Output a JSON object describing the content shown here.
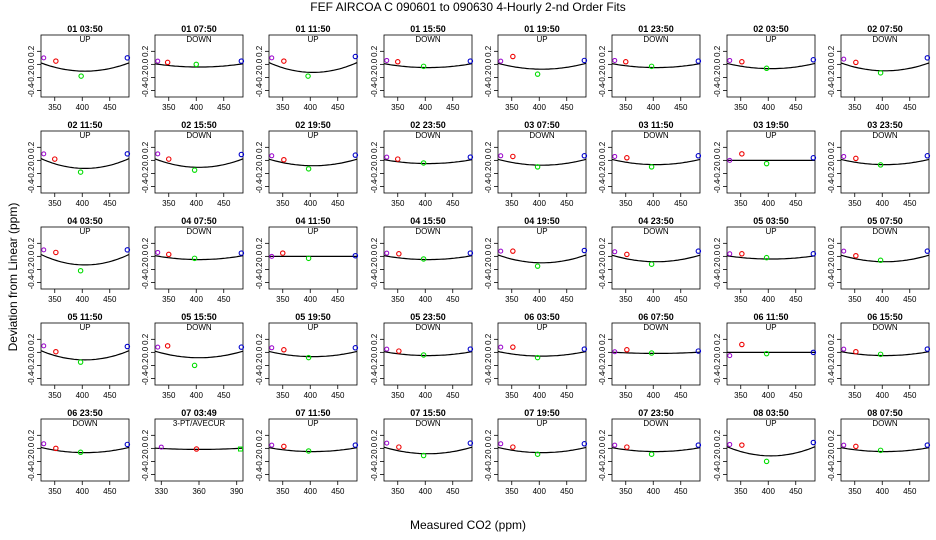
{
  "figure": {
    "title": "FEF   AIRCOA C   090601 to 090630   4-Hourly 2-nd Order Fits",
    "xlabel": "Measured CO2 (ppm)",
    "ylabel": "Deviation from Linear (ppm)"
  },
  "colors": {
    "curve": "#000000",
    "low_std": "#9900cc",
    "std2": "#ee0000",
    "std3": "#00dd00",
    "high_std": "#0000cc"
  },
  "chart_data": {
    "type": "scatter",
    "description_units": "x: Measured CO2 (ppm); y: Deviation from Linear (ppm)",
    "ylim": [
      -0.5,
      0.45
    ],
    "yticks": [
      -0.4,
      -0.2,
      0.0,
      0.2
    ],
    "ytick_labels": [
      "-0.4",
      "-0.2",
      "0.0",
      "0.2"
    ],
    "xlim": [
      325,
      485
    ],
    "xticks": [
      350,
      400,
      450
    ],
    "xtick_labels": [
      "350",
      "400",
      "450"
    ],
    "panels": [
      {
        "title": "01 03:50",
        "label": "UP",
        "a": 0.127,
        "points": [
          [
            330,
            0.1
          ],
          [
            352,
            0.05
          ],
          [
            398,
            -0.18
          ],
          [
            482,
            0.1
          ]
        ]
      },
      {
        "title": "01 07:50",
        "label": "DOWN",
        "a": 0.05,
        "points": [
          [
            330,
            0.05
          ],
          [
            348,
            0.03
          ],
          [
            400,
            0.0
          ],
          [
            482,
            0.05
          ]
        ]
      },
      {
        "title": "01 11:50",
        "label": "UP",
        "a": 0.15,
        "points": [
          [
            330,
            0.1
          ],
          [
            352,
            0.05
          ],
          [
            396,
            -0.18
          ],
          [
            482,
            0.12
          ]
        ]
      },
      {
        "title": "01 15:50",
        "label": "DOWN",
        "a": 0.06,
        "points": [
          [
            330,
            0.06
          ],
          [
            350,
            0.04
          ],
          [
            397,
            -0.03
          ],
          [
            482,
            0.05
          ]
        ]
      },
      {
        "title": "01 19:50",
        "label": "UP",
        "a": 0.09,
        "points": [
          [
            330,
            0.05
          ],
          [
            352,
            0.12
          ],
          [
            397,
            -0.15
          ],
          [
            482,
            0.06
          ]
        ]
      },
      {
        "title": "01 23:50",
        "label": "DOWN",
        "a": 0.06,
        "points": [
          [
            330,
            0.06
          ],
          [
            350,
            0.04
          ],
          [
            397,
            -0.03
          ],
          [
            482,
            0.05
          ]
        ]
      },
      {
        "title": "02 03:50",
        "label": "UP",
        "a": 0.08,
        "points": [
          [
            330,
            0.06
          ],
          [
            352,
            0.04
          ],
          [
            397,
            -0.06
          ],
          [
            482,
            0.07
          ]
        ]
      },
      {
        "title": "02 07:50",
        "label": "DOWN",
        "a": 0.12,
        "points": [
          [
            330,
            0.08
          ],
          [
            352,
            0.03
          ],
          [
            397,
            -0.13
          ],
          [
            482,
            0.1
          ]
        ]
      },
      {
        "title": "02 11:50",
        "label": "UP",
        "a": 0.15,
        "points": [
          [
            330,
            0.1
          ],
          [
            350,
            0.02
          ],
          [
            397,
            -0.18
          ],
          [
            482,
            0.1
          ]
        ]
      },
      {
        "title": "02 15:50",
        "label": "DOWN",
        "a": 0.13,
        "points": [
          [
            330,
            0.1
          ],
          [
            350,
            0.02
          ],
          [
            397,
            -0.15
          ],
          [
            482,
            0.09
          ]
        ]
      },
      {
        "title": "02 19:50",
        "label": "UP",
        "a": 0.1,
        "points": [
          [
            330,
            0.07
          ],
          [
            352,
            0.01
          ],
          [
            397,
            -0.13
          ],
          [
            482,
            0.08
          ]
        ]
      },
      {
        "title": "02 23:50",
        "label": "DOWN",
        "a": 0.06,
        "points": [
          [
            330,
            0.05
          ],
          [
            350,
            0.02
          ],
          [
            397,
            -0.04
          ],
          [
            482,
            0.05
          ]
        ]
      },
      {
        "title": "03 07:50",
        "label": "DOWN",
        "a": 0.09,
        "points": [
          [
            330,
            0.07
          ],
          [
            352,
            0.06
          ],
          [
            397,
            -0.1
          ],
          [
            482,
            0.07
          ]
        ]
      },
      {
        "title": "03 11:50",
        "label": "DOWN",
        "a": 0.08,
        "points": [
          [
            330,
            0.06
          ],
          [
            352,
            0.04
          ],
          [
            397,
            -0.1
          ],
          [
            482,
            0.07
          ]
        ]
      },
      {
        "title": "03 19:50",
        "label": "UP",
        "a": 0.0,
        "points": [
          [
            330,
            0.0
          ],
          [
            352,
            0.1
          ],
          [
            397,
            -0.05
          ],
          [
            482,
            0.04
          ]
        ]
      },
      {
        "title": "03 23:50",
        "label": "DOWN",
        "a": 0.08,
        "points": [
          [
            330,
            0.06
          ],
          [
            352,
            0.03
          ],
          [
            397,
            -0.07
          ],
          [
            482,
            0.07
          ]
        ]
      },
      {
        "title": "04 03:50",
        "label": "UP",
        "a": 0.16,
        "points": [
          [
            330,
            0.1
          ],
          [
            352,
            0.06
          ],
          [
            397,
            -0.22
          ],
          [
            482,
            0.1
          ]
        ]
      },
      {
        "title": "04 07:50",
        "label": "DOWN",
        "a": 0.06,
        "points": [
          [
            330,
            0.06
          ],
          [
            350,
            0.03
          ],
          [
            397,
            -0.03
          ],
          [
            482,
            0.05
          ]
        ]
      },
      {
        "title": "04 11:50",
        "label": "UP",
        "a": 0.0,
        "points": [
          [
            330,
            0.0
          ],
          [
            350,
            0.05
          ],
          [
            397,
            -0.03
          ],
          [
            482,
            0.01
          ]
        ]
      },
      {
        "title": "04 15:50",
        "label": "DOWN",
        "a": 0.06,
        "points": [
          [
            330,
            0.05
          ],
          [
            352,
            0.04
          ],
          [
            397,
            -0.04
          ],
          [
            482,
            0.05
          ]
        ]
      },
      {
        "title": "04 19:50",
        "label": "UP",
        "a": 0.12,
        "points": [
          [
            330,
            0.08
          ],
          [
            352,
            0.08
          ],
          [
            397,
            -0.15
          ],
          [
            482,
            0.09
          ]
        ]
      },
      {
        "title": "04 23:50",
        "label": "DOWN",
        "a": 0.1,
        "points": [
          [
            330,
            0.07
          ],
          [
            352,
            0.03
          ],
          [
            397,
            -0.12
          ],
          [
            482,
            0.08
          ]
        ]
      },
      {
        "title": "05 03:50",
        "label": "UP",
        "a": 0.05,
        "points": [
          [
            330,
            0.04
          ],
          [
            352,
            0.04
          ],
          [
            397,
            -0.02
          ],
          [
            482,
            0.04
          ]
        ]
      },
      {
        "title": "05 07:50",
        "label": "DOWN",
        "a": 0.1,
        "points": [
          [
            330,
            0.08
          ],
          [
            352,
            0.01
          ],
          [
            397,
            -0.06
          ],
          [
            482,
            0.08
          ]
        ]
      },
      {
        "title": "05 11:50",
        "label": "UP",
        "a": 0.14,
        "points": [
          [
            330,
            0.1
          ],
          [
            352,
            0.01
          ],
          [
            397,
            -0.15
          ],
          [
            482,
            0.09
          ]
        ]
      },
      {
        "title": "05 15:50",
        "label": "DOWN",
        "a": 0.1,
        "points": [
          [
            330,
            0.08
          ],
          [
            348,
            0.1
          ],
          [
            397,
            -0.2
          ],
          [
            482,
            0.08
          ]
        ]
      },
      {
        "title": "05 19:50",
        "label": "UP",
        "a": 0.08,
        "points": [
          [
            330,
            0.07
          ],
          [
            352,
            0.04
          ],
          [
            397,
            -0.08
          ],
          [
            482,
            0.07
          ]
        ]
      },
      {
        "title": "05 23:50",
        "label": "DOWN",
        "a": 0.06,
        "points": [
          [
            330,
            0.05
          ],
          [
            352,
            0.02
          ],
          [
            397,
            -0.04
          ],
          [
            482,
            0.05
          ]
        ]
      },
      {
        "title": "06 03:50",
        "label": "UP",
        "a": 0.07,
        "points": [
          [
            330,
            0.08
          ],
          [
            352,
            0.08
          ],
          [
            397,
            -0.08
          ],
          [
            482,
            0.05
          ]
        ]
      },
      {
        "title": "06 07:50",
        "label": "DOWN",
        "a": 0.02,
        "points": [
          [
            330,
            0.01
          ],
          [
            352,
            0.04
          ],
          [
            397,
            -0.01
          ],
          [
            482,
            0.02
          ]
        ]
      },
      {
        "title": "06 11:50",
        "label": "UP",
        "a": 0.0,
        "points": [
          [
            330,
            -0.05
          ],
          [
            352,
            0.12
          ],
          [
            397,
            -0.02
          ],
          [
            482,
            0.0
          ]
        ]
      },
      {
        "title": "06 15:50",
        "label": "DOWN",
        "a": 0.06,
        "points": [
          [
            330,
            0.05
          ],
          [
            352,
            0.01
          ],
          [
            397,
            -0.03
          ],
          [
            482,
            0.05
          ]
        ]
      },
      {
        "title": "06 23:50",
        "label": "DOWN",
        "a": 0.08,
        "points": [
          [
            330,
            0.07
          ],
          [
            352,
            0.0
          ],
          [
            397,
            -0.06
          ],
          [
            482,
            0.06
          ]
        ]
      },
      {
        "title": "07 03:49",
        "label": "3-PT/AVECUR",
        "a": 0.02,
        "xlim": [
          325,
          395
        ],
        "xticks": [
          330,
          360,
          390
        ],
        "points": [
          [
            330,
            0.02
          ],
          [
            358,
            -0.01
          ],
          [
            393,
            -0.01
          ]
        ]
      },
      {
        "title": "07 11:50",
        "label": "UP",
        "a": 0.06,
        "points": [
          [
            330,
            0.05
          ],
          [
            352,
            0.03
          ],
          [
            397,
            -0.04
          ],
          [
            482,
            0.05
          ]
        ]
      },
      {
        "title": "07 15:50",
        "label": "DOWN",
        "a": 0.1,
        "points": [
          [
            330,
            0.08
          ],
          [
            352,
            0.02
          ],
          [
            397,
            -0.11
          ],
          [
            482,
            0.08
          ]
        ]
      },
      {
        "title": "07 19:50",
        "label": "UP",
        "a": 0.08,
        "points": [
          [
            330,
            0.07
          ],
          [
            352,
            0.02
          ],
          [
            397,
            -0.09
          ],
          [
            482,
            0.07
          ]
        ]
      },
      {
        "title": "07 23:50",
        "label": "DOWN",
        "a": 0.06,
        "points": [
          [
            330,
            0.05
          ],
          [
            352,
            0.02
          ],
          [
            397,
            -0.09
          ],
          [
            482,
            0.05
          ]
        ]
      },
      {
        "title": "08 03:50",
        "label": "UP",
        "a": 0.14,
        "points": [
          [
            330,
            0.06
          ],
          [
            352,
            0.05
          ],
          [
            397,
            -0.2
          ],
          [
            482,
            0.09
          ]
        ]
      },
      {
        "title": "08 07:50",
        "label": "DOWN",
        "a": 0.06,
        "points": [
          [
            330,
            0.05
          ],
          [
            352,
            0.03
          ],
          [
            397,
            -0.03
          ],
          [
            482,
            0.05
          ]
        ]
      }
    ]
  }
}
